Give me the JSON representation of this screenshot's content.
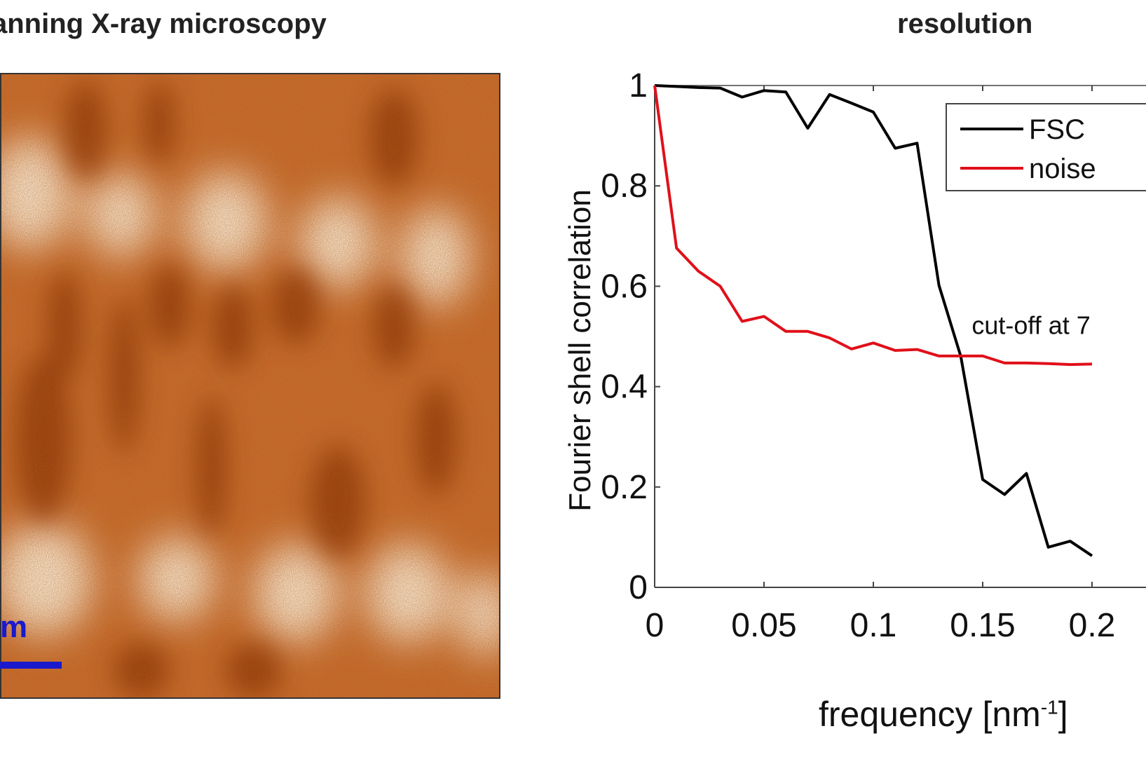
{
  "left_panel": {
    "title": "anning X-ray microscopy",
    "scalebar_label": "m",
    "colors": {
      "dark": "#9a3a0a",
      "mid": "#c96a2a",
      "light": "#fff5e6",
      "scalebar": "#1a1acc"
    }
  },
  "chart_data": {
    "type": "line",
    "title": "resolution",
    "xlabel": "frequency [nm",
    "xlabel_sup": "-1",
    "xlabel_end": "]",
    "ylabel": "Fourier shell correlation",
    "xlim": [
      0,
      0.2
    ],
    "ylim": [
      0,
      1
    ],
    "xticks": [
      "0",
      "0.05",
      "0.1",
      "0.15",
      "0.2"
    ],
    "yticks": [
      "0",
      "0.2",
      "0.4",
      "0.6",
      "0.8",
      "1"
    ],
    "grid": false,
    "legend_position": "top-right",
    "series": [
      {
        "name": "FSC",
        "color": "#000000",
        "x": [
          0,
          0.01,
          0.02,
          0.03,
          0.04,
          0.05,
          0.06,
          0.07,
          0.08,
          0.09,
          0.1,
          0.11,
          0.12,
          0.13,
          0.14,
          0.15,
          0.16,
          0.17,
          0.18,
          0.19,
          0.2
        ],
        "y": [
          1.0,
          0.998,
          0.996,
          0.995,
          0.977,
          0.99,
          0.987,
          0.915,
          0.982,
          0.965,
          0.947,
          0.875,
          0.885,
          0.602,
          0.46,
          0.215,
          0.185,
          0.227,
          0.08,
          0.092,
          0.063
        ]
      },
      {
        "name": "noise",
        "color": "#e0101a",
        "x": [
          0,
          0.01,
          0.02,
          0.03,
          0.04,
          0.05,
          0.06,
          0.07,
          0.08,
          0.09,
          0.1,
          0.11,
          0.12,
          0.13,
          0.14,
          0.15,
          0.16,
          0.17,
          0.18,
          0.19,
          0.2
        ],
        "y": [
          1.0,
          0.676,
          0.63,
          0.6,
          0.53,
          0.54,
          0.51,
          0.51,
          0.497,
          0.475,
          0.487,
          0.472,
          0.474,
          0.461,
          0.461,
          0.461,
          0.447,
          0.447,
          0.446,
          0.444,
          0.445
        ]
      }
    ],
    "annotations": [
      {
        "text": "cut-off at 7",
        "x": 0.145,
        "y": 0.505
      }
    ]
  }
}
